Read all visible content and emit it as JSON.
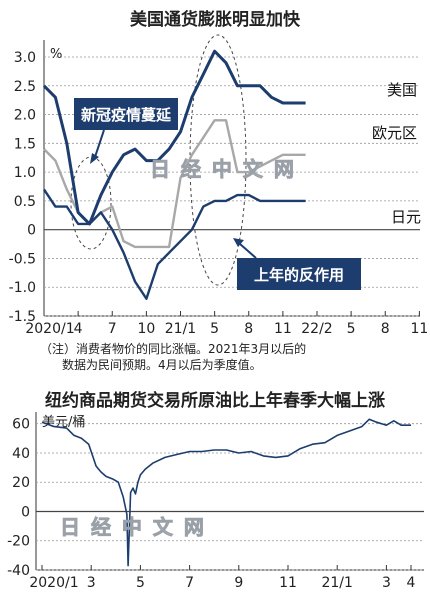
{
  "chart_data": [
    {
      "type": "line",
      "title": "美国通货膨胀明显加快",
      "unit": "%",
      "ylim": [
        -1.5,
        3.25
      ],
      "yticks": [
        -1.5,
        -1.0,
        -0.5,
        0,
        0.5,
        1.0,
        1.5,
        2.0,
        2.5,
        3.0
      ],
      "ytick_labels": [
        "-1.5",
        "-1.0",
        "-0.5",
        "0",
        "0.5",
        "1.0",
        "1.5",
        "2.0",
        "2.5",
        "3.0"
      ],
      "x_months_from_2020_01": [
        0,
        1,
        2,
        3,
        4,
        5,
        6,
        7,
        8,
        9,
        10,
        11,
        12,
        13,
        14,
        15,
        16,
        17,
        18,
        19,
        20,
        21,
        22,
        23
      ],
      "xticks": [
        0,
        3,
        6,
        9,
        12,
        15,
        18,
        21,
        24,
        27,
        30,
        33
      ],
      "xtick_labels": [
        "2020/1",
        "4",
        "7",
        "10",
        "21/1",
        "5",
        "8",
        "11",
        "22/2",
        "5",
        "8",
        "11"
      ],
      "series": [
        {
          "name": "美国",
          "color": "#1c3d6e",
          "x": [
            0,
            1,
            2,
            3,
            4,
            5,
            6,
            7,
            8,
            9,
            10,
            11,
            12,
            13,
            14,
            15,
            16,
            17,
            18,
            19,
            20,
            21,
            22,
            23
          ],
          "values": [
            2.5,
            2.3,
            1.5,
            0.3,
            0.1,
            0.6,
            1.0,
            1.3,
            1.4,
            1.2,
            1.2,
            1.4,
            1.7,
            2.3,
            2.7,
            3.1,
            2.9,
            2.5,
            2.5,
            2.5,
            2.3,
            2.2,
            2.2,
            2.2
          ]
        },
        {
          "name": "欧元区",
          "color": "#a8a8a8",
          "x": [
            0,
            1,
            2,
            3,
            4,
            5,
            6,
            7,
            8,
            9,
            10,
            11,
            12,
            13,
            14,
            15,
            16,
            17,
            18,
            19,
            20,
            21,
            22,
            23
          ],
          "values": [
            1.4,
            1.2,
            0.7,
            0.3,
            0.1,
            0.3,
            0.4,
            -0.2,
            -0.3,
            -0.3,
            -0.3,
            -0.3,
            0.9,
            1.3,
            1.6,
            1.9,
            1.9,
            1.0,
            1.0,
            1.1,
            1.2,
            1.3,
            1.3,
            1.3
          ]
        },
        {
          "name": "日元",
          "color": "#1c3d6e",
          "x": [
            0,
            1,
            2,
            3,
            4,
            5,
            6,
            7,
            8,
            9,
            10,
            11,
            12,
            13,
            14,
            15,
            16,
            17,
            18,
            19,
            20,
            21,
            22,
            23
          ],
          "values": [
            0.7,
            0.4,
            0.4,
            0.1,
            0.1,
            0.3,
            0.0,
            -0.4,
            -0.9,
            -1.2,
            -0.6,
            -0.4,
            -0.2,
            0.0,
            0.4,
            0.5,
            0.5,
            0.6,
            0.6,
            0.5,
            0.5,
            0.5,
            0.5,
            0.5
          ]
        }
      ],
      "annotations": [
        {
          "text": "新冠疫情蔓延"
        },
        {
          "text": "上年的反作用"
        }
      ]
    },
    {
      "type": "line",
      "title": "纽约商品期货交易所原油比上年春季大幅上涨",
      "unit": "美元/桶",
      "ylim": [
        -40,
        68
      ],
      "yticks": [
        -40,
        -20,
        0,
        20,
        40,
        60
      ],
      "ytick_labels": [
        "-40",
        "-20",
        "0",
        "20",
        "40",
        "60"
      ],
      "xticks": [
        0,
        2,
        4,
        6,
        8,
        10,
        12,
        14,
        15
      ],
      "xtick_labels": [
        "2020/1",
        "3",
        "5",
        "7",
        "9",
        "11",
        "21/1",
        "3",
        "4"
      ],
      "series": [
        {
          "name": "",
          "color": "#1c3d6e",
          "x": [
            0,
            0.5,
            1.0,
            1.3,
            1.6,
            1.9,
            2.2,
            2.4,
            2.6,
            2.9,
            3.1,
            3.3,
            3.45,
            3.5,
            3.6,
            3.7,
            3.8,
            3.9,
            4.0,
            4.2,
            4.5,
            5.0,
            5.5,
            6.0,
            6.5,
            7.0,
            7.5,
            8.0,
            8.5,
            9.0,
            9.5,
            10.0,
            10.5,
            11.0,
            11.5,
            12.0,
            12.5,
            13.0,
            13.3,
            13.6,
            14.0,
            14.3,
            14.6,
            15.0
          ],
          "values": [
            61,
            58,
            57,
            52,
            50,
            46,
            31,
            27,
            24,
            22,
            20,
            10,
            -2,
            -37,
            13,
            16,
            12,
            20,
            25,
            29,
            33,
            37,
            39,
            41,
            41,
            42,
            42,
            40,
            41,
            38,
            37,
            38,
            43,
            46,
            47,
            52,
            55,
            58,
            63,
            61,
            59,
            62,
            59,
            59
          ]
        }
      ]
    }
  ],
  "notes": {
    "line1": "（注）消费者物价的同比涨幅。2021年3月以后的",
    "line2": "数据为民间预期。4月以后为季度值。"
  },
  "watermark": "日 经 中 文 网"
}
